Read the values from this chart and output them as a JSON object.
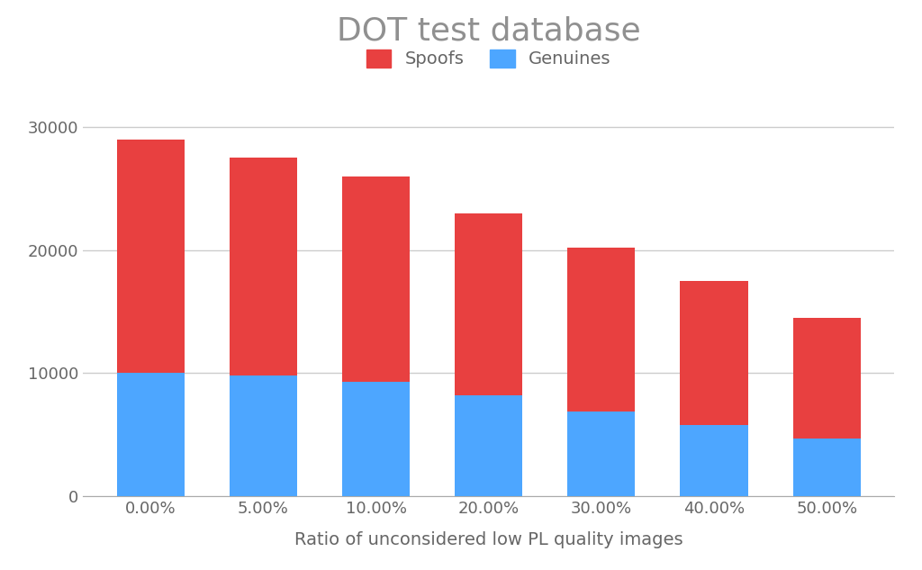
{
  "title": "DOT test database",
  "xlabel": "Ratio of unconsidered low PL quality images",
  "categories": [
    "0.00%",
    "5.00%",
    "10.00%",
    "20.00%",
    "30.00%",
    "40.00%",
    "50.00%"
  ],
  "genuines": [
    10000,
    9800,
    9300,
    8200,
    6900,
    5800,
    4700
  ],
  "spoofs_total": [
    29000,
    27500,
    26000,
    23000,
    20200,
    17500,
    14500
  ],
  "spoof_color": "#e84040",
  "genuine_color": "#4da6ff",
  "background_color": "#ffffff",
  "title_color": "#909090",
  "title_fontsize": 26,
  "label_fontsize": 14,
  "tick_fontsize": 13,
  "legend_fontsize": 14,
  "ylim": [
    0,
    32000
  ],
  "yticks": [
    0,
    10000,
    20000,
    30000
  ],
  "grid_color": "#cccccc",
  "bar_width": 0.6
}
